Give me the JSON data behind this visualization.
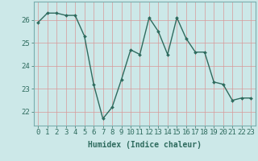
{
  "x": [
    0,
    1,
    2,
    3,
    4,
    5,
    6,
    7,
    8,
    9,
    10,
    11,
    12,
    13,
    14,
    15,
    16,
    17,
    18,
    19,
    20,
    21,
    22,
    23
  ],
  "y": [
    25.9,
    26.3,
    26.3,
    26.2,
    26.2,
    25.3,
    23.2,
    21.7,
    22.2,
    23.4,
    24.7,
    24.5,
    26.1,
    25.5,
    24.5,
    26.1,
    25.2,
    24.6,
    24.6,
    23.3,
    23.2,
    22.5,
    22.6,
    22.6
  ],
  "line_color": "#2e6b5e",
  "marker": "D",
  "marker_size": 2.0,
  "bg_color": "#cce8e8",
  "grid_color_v": "#d89898",
  "grid_color_h": "#d89898",
  "xlabel": "Humidex (Indice chaleur)",
  "xlabel_fontsize": 7,
  "ylim": [
    21.4,
    26.8
  ],
  "xlim": [
    -0.5,
    23.5
  ],
  "yticks": [
    22,
    23,
    24,
    25,
    26
  ],
  "xticks": [
    0,
    1,
    2,
    3,
    4,
    5,
    6,
    7,
    8,
    9,
    10,
    11,
    12,
    13,
    14,
    15,
    16,
    17,
    18,
    19,
    20,
    21,
    22,
    23
  ],
  "tick_fontsize": 6.5,
  "line_width": 1.0
}
